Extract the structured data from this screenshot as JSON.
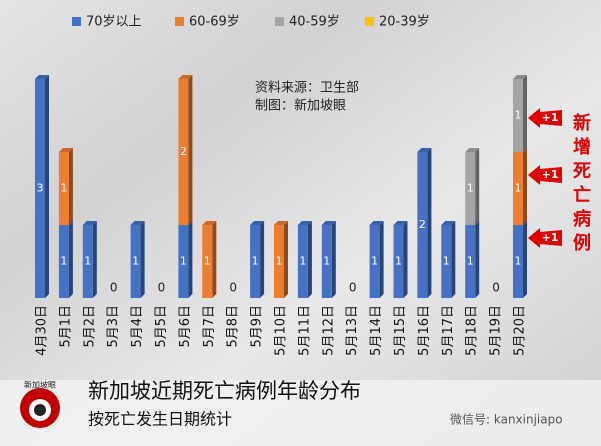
{
  "chart_data": {
    "type": "stacked_bar",
    "title": "新加坡近期死亡病例年龄分布",
    "subtitle": "按死亡发生日期统计",
    "source": "资料来源：卫生部",
    "credit": "制图：新加坡眼",
    "categories": [
      "4月30日",
      "5月1日",
      "5月2日",
      "5月3日",
      "5月4日",
      "5月5日",
      "5月6日",
      "5月7日",
      "5月8日",
      "5月9日",
      "5月10日",
      "5月11日",
      "5月12日",
      "5月13日",
      "5月14日",
      "5月15日",
      "5月16日",
      "5月17日",
      "5月18日",
      "5月19日",
      "5月20日"
    ],
    "series": [
      {
        "name": "70岁以上",
        "color": "#4472c4",
        "values": [
          3,
          1,
          1,
          0,
          1,
          0,
          1,
          0,
          0,
          1,
          0,
          1,
          1,
          0,
          1,
          1,
          2,
          1,
          1,
          0,
          1
        ]
      },
      {
        "name": "60-69岁",
        "color": "#ed7d31",
        "values": [
          0,
          1,
          0,
          0,
          0,
          0,
          2,
          1,
          0,
          0,
          1,
          0,
          0,
          0,
          0,
          0,
          0,
          0,
          0,
          0,
          1
        ]
      },
      {
        "name": "40-59岁",
        "color": "#a5a5a5",
        "values": [
          0,
          0,
          0,
          0,
          0,
          0,
          0,
          0,
          0,
          0,
          0,
          0,
          0,
          0,
          0,
          0,
          0,
          0,
          1,
          0,
          1
        ]
      },
      {
        "name": "20-39岁",
        "color": "#ffc000",
        "values": [
          0,
          0,
          0,
          0,
          0,
          0,
          0,
          0,
          0,
          0,
          0,
          0,
          0,
          0,
          0,
          0,
          0,
          0,
          0,
          0,
          0
        ]
      }
    ],
    "annotations": {
      "side_note": "新增死亡病例",
      "increments": [
        "+1",
        "+1",
        "+1"
      ],
      "logo": "新加坡眼",
      "watermark": "微信号: kanxinjiapo"
    }
  }
}
